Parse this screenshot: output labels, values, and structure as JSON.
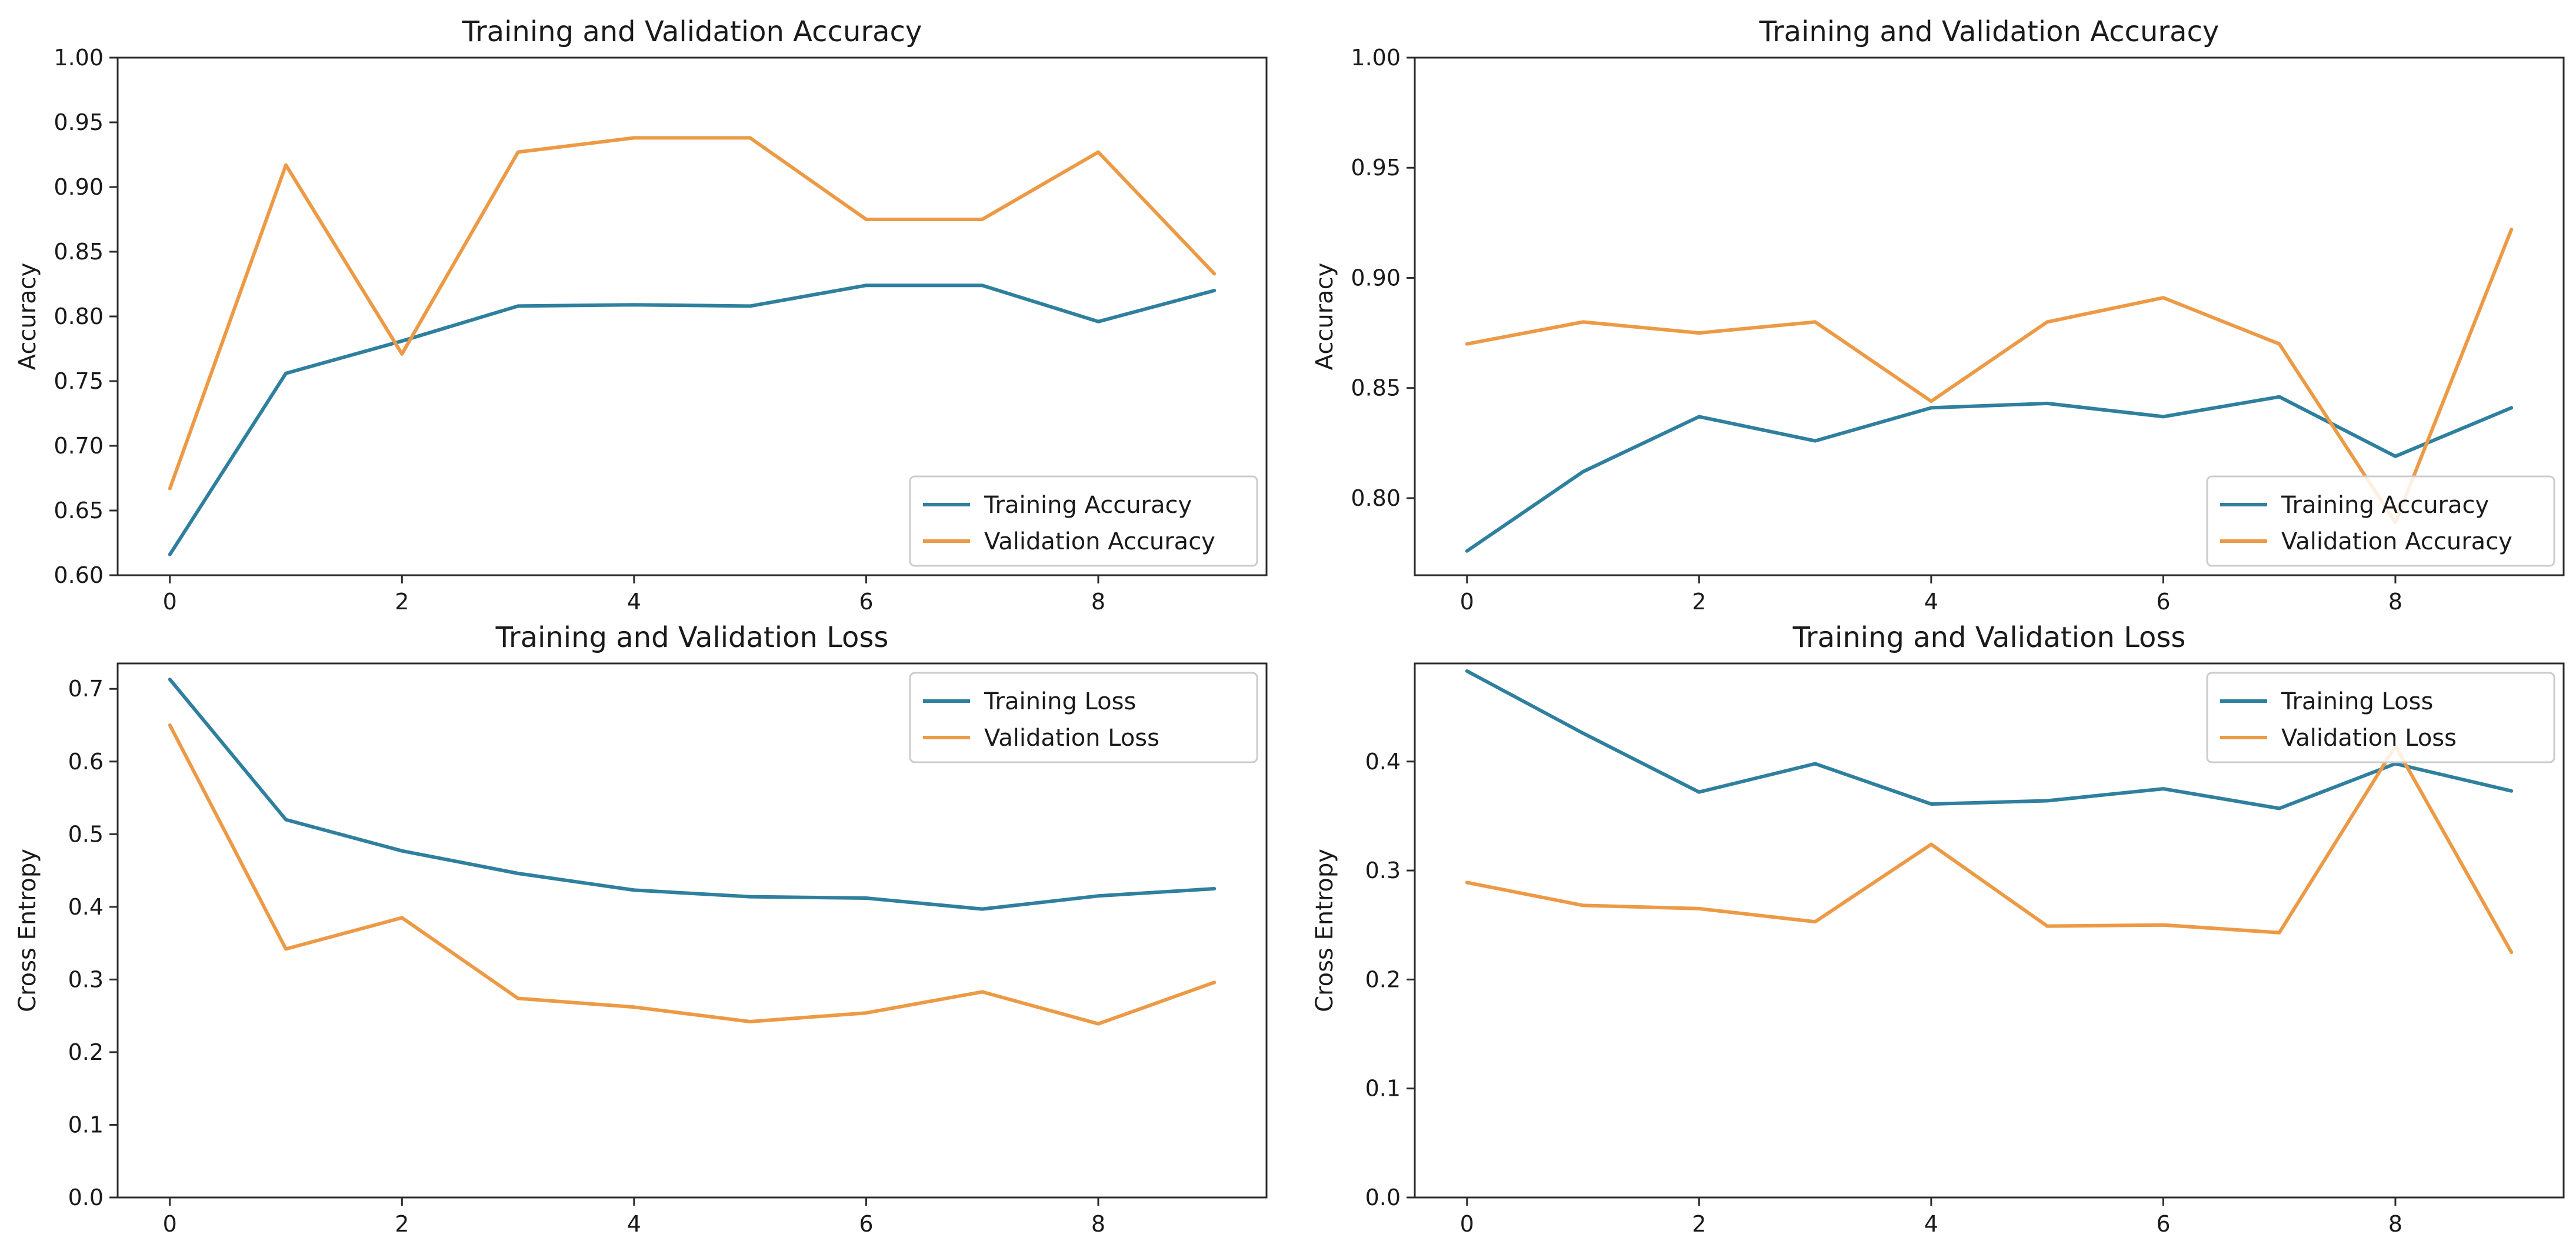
{
  "colors": {
    "training": "#2f7f9e",
    "validation": "#ec9a45"
  },
  "chart_data": [
    {
      "type": "line",
      "title": "Training and Validation Accuracy",
      "xlabel": "",
      "ylabel": "Accuracy",
      "xlim": [
        -0.45,
        9.45
      ],
      "ylim": [
        0.6,
        1.0
      ],
      "xticks": [
        0,
        2,
        4,
        6,
        8
      ],
      "yticks": [
        0.6,
        0.65,
        0.7,
        0.75,
        0.8,
        0.85,
        0.9,
        0.95,
        1.0
      ],
      "ytick_labels": [
        "0.60",
        "0.65",
        "0.70",
        "0.75",
        "0.80",
        "0.85",
        "0.90",
        "0.95",
        "1.00"
      ],
      "legend_position": "lower-right",
      "x": [
        0,
        1,
        2,
        3,
        4,
        5,
        6,
        7,
        8,
        9
      ],
      "series": [
        {
          "name": "Training Accuracy",
          "color_key": "training",
          "values": [
            0.616,
            0.756,
            0.781,
            0.808,
            0.809,
            0.808,
            0.824,
            0.824,
            0.796,
            0.82
          ]
        },
        {
          "name": "Validation Accuracy",
          "color_key": "validation",
          "values": [
            0.667,
            0.917,
            0.771,
            0.927,
            0.938,
            0.938,
            0.875,
            0.875,
            0.927,
            0.833
          ]
        }
      ]
    },
    {
      "type": "line",
      "title": "Training and Validation Accuracy",
      "xlabel": "",
      "ylabel": "Accuracy",
      "xlim": [
        -0.45,
        9.45
      ],
      "ylim": [
        0.765,
        1.0
      ],
      "xticks": [
        0,
        2,
        4,
        6,
        8
      ],
      "yticks": [
        0.8,
        0.85,
        0.9,
        0.95,
        1.0
      ],
      "ytick_labels": [
        "0.80",
        "0.85",
        "0.90",
        "0.95",
        "1.00"
      ],
      "legend_position": "lower-right",
      "x": [
        0,
        1,
        2,
        3,
        4,
        5,
        6,
        7,
        8,
        9
      ],
      "series": [
        {
          "name": "Training Accuracy",
          "color_key": "training",
          "values": [
            0.776,
            0.812,
            0.837,
            0.826,
            0.841,
            0.843,
            0.837,
            0.846,
            0.819,
            0.841
          ]
        },
        {
          "name": "Validation Accuracy",
          "color_key": "validation",
          "values": [
            0.87,
            0.88,
            0.875,
            0.88,
            0.844,
            0.88,
            0.891,
            0.87,
            0.789,
            0.922
          ]
        }
      ]
    },
    {
      "type": "line",
      "title": "Training and Validation Loss",
      "xlabel": "",
      "ylabel": "Cross Entropy",
      "xlim": [
        -0.45,
        9.45
      ],
      "ylim": [
        0.0,
        0.735
      ],
      "xticks": [
        0,
        2,
        4,
        6,
        8
      ],
      "yticks": [
        0.0,
        0.1,
        0.2,
        0.3,
        0.4,
        0.5,
        0.6,
        0.7
      ],
      "ytick_labels": [
        "0.0",
        "0.1",
        "0.2",
        "0.3",
        "0.4",
        "0.5",
        "0.6",
        "0.7"
      ],
      "legend_position": "upper-right",
      "x": [
        0,
        1,
        2,
        3,
        4,
        5,
        6,
        7,
        8,
        9
      ],
      "series": [
        {
          "name": "Training Loss",
          "color_key": "training",
          "values": [
            0.713,
            0.52,
            0.477,
            0.446,
            0.423,
            0.414,
            0.412,
            0.397,
            0.415,
            0.425
          ]
        },
        {
          "name": "Validation Loss",
          "color_key": "validation",
          "values": [
            0.65,
            0.342,
            0.385,
            0.274,
            0.262,
            0.242,
            0.254,
            0.283,
            0.239,
            0.296
          ]
        }
      ]
    },
    {
      "type": "line",
      "title": "Training and Validation Loss",
      "xlabel": "",
      "ylabel": "Cross Entropy",
      "xlim": [
        -0.45,
        9.45
      ],
      "ylim": [
        0.0,
        0.49
      ],
      "xticks": [
        0,
        2,
        4,
        6,
        8
      ],
      "yticks": [
        0.0,
        0.1,
        0.2,
        0.3,
        0.4
      ],
      "ytick_labels": [
        "0.0",
        "0.1",
        "0.2",
        "0.3",
        "0.4"
      ],
      "legend_position": "upper-right",
      "x": [
        0,
        1,
        2,
        3,
        4,
        5,
        6,
        7,
        8,
        9
      ],
      "series": [
        {
          "name": "Training Loss",
          "color_key": "training",
          "values": [
            0.483,
            0.426,
            0.372,
            0.398,
            0.361,
            0.364,
            0.375,
            0.357,
            0.398,
            0.373
          ]
        },
        {
          "name": "Validation Loss",
          "color_key": "validation",
          "values": [
            0.289,
            0.268,
            0.265,
            0.253,
            0.324,
            0.249,
            0.25,
            0.243,
            0.414,
            0.225
          ]
        }
      ]
    }
  ]
}
